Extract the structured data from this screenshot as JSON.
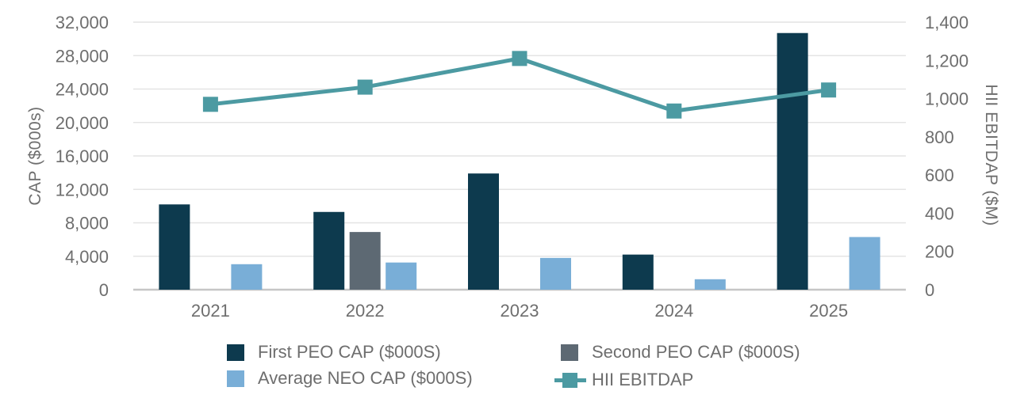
{
  "chart_data": {
    "type": "combo_bar_line",
    "title": "",
    "categories": [
      "2021",
      "2022",
      "2023",
      "2024",
      "2025"
    ],
    "series": [
      {
        "name": "First PEO CAP ($000S)",
        "type": "bar",
        "axis": "left",
        "color": "#0d3a4e",
        "values": [
          10200,
          9300,
          13900,
          4200,
          30700
        ]
      },
      {
        "name": "Second PEO CAP ($000S)",
        "type": "bar",
        "axis": "left",
        "color": "#5d6973",
        "values": [
          null,
          6900,
          null,
          null,
          null
        ]
      },
      {
        "name": "Average NEO CAP ($000S)",
        "type": "bar",
        "axis": "left",
        "color": "#79aed7",
        "values": [
          3050,
          3250,
          3800,
          1250,
          6300
        ]
      },
      {
        "name": "HII EBITDAP",
        "type": "line",
        "axis": "right",
        "color": "#4c9aa2",
        "values": [
          970,
          1060,
          1210,
          935,
          1045
        ]
      }
    ],
    "left_axis": {
      "title": "CAP ($000s)",
      "min": 0,
      "max": 32000,
      "step": 4000,
      "tick_labels": [
        "0",
        "4,000",
        "8,000",
        "12,000",
        "16,000",
        "20,000",
        "24,000",
        "28,000",
        "32,000"
      ]
    },
    "right_axis": {
      "title": "HII EBITDAP ($M)",
      "min": 0,
      "max": 1400,
      "step": 200,
      "tick_labels": [
        "0",
        "200",
        "400",
        "600",
        "800",
        "1,000",
        "1,200",
        "1,400"
      ]
    },
    "grid": true,
    "legend_position": "bottom"
  },
  "colors": {
    "background": "#ffffff",
    "text": "#6e6e6e",
    "gridline": "#e4e4e4",
    "axis_line": "#c6c6c6"
  }
}
